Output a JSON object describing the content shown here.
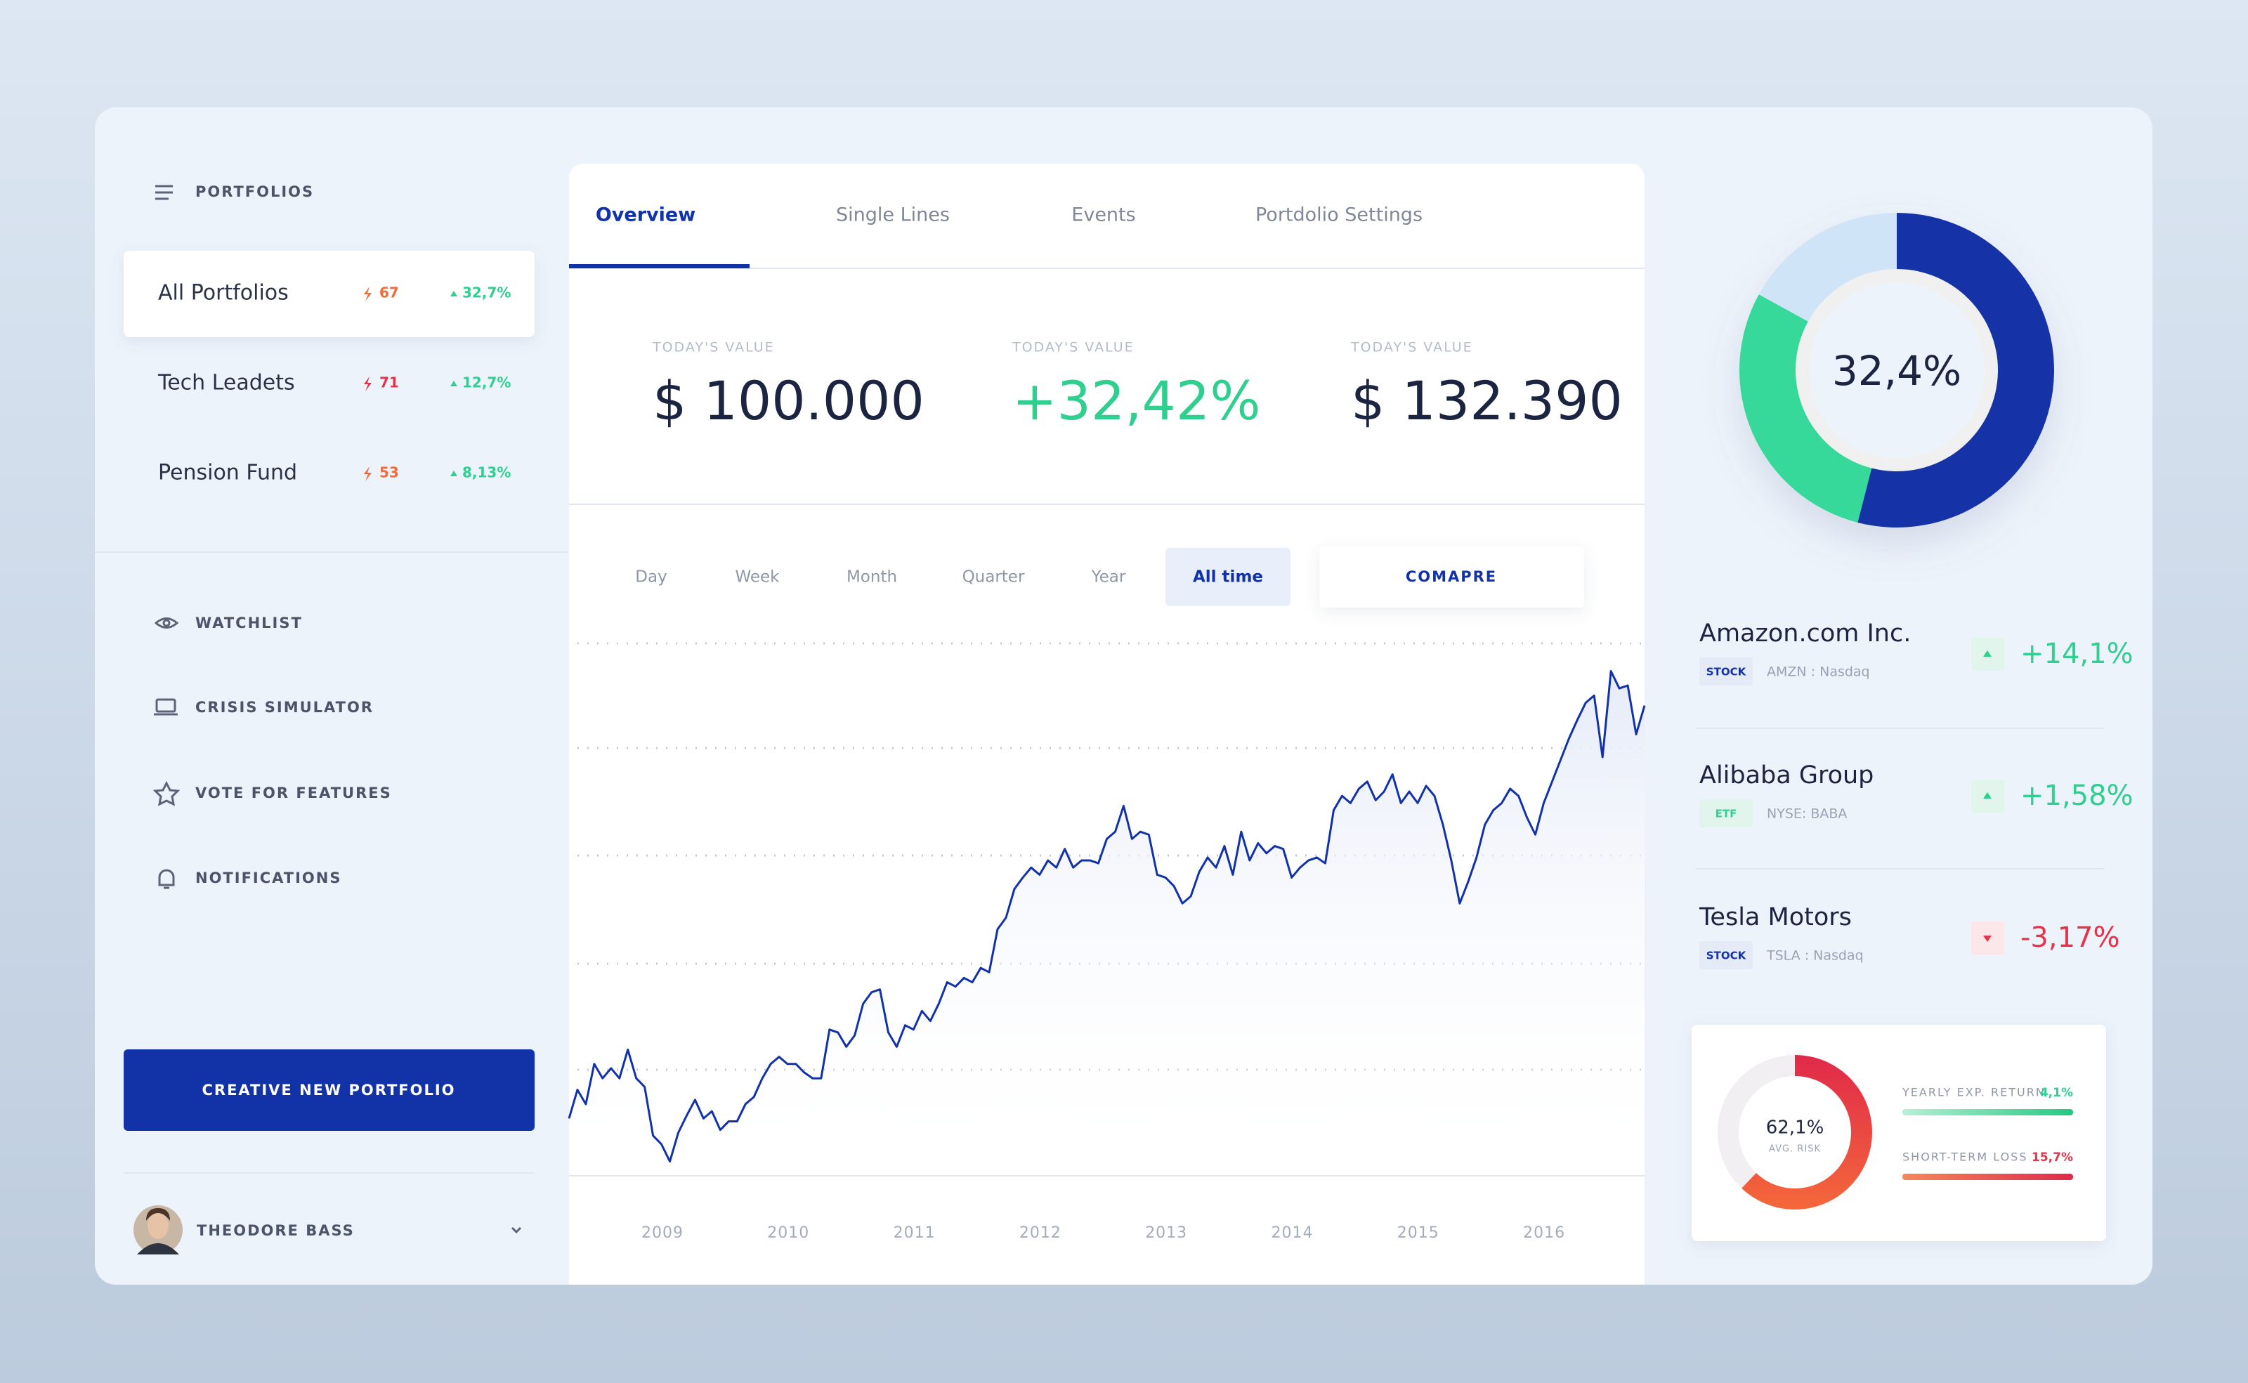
{
  "sidebar": {
    "title": "PORTFOLIOS",
    "portfolios": [
      {
        "name": "All Portfolios",
        "count": "67",
        "change": "32,7%"
      },
      {
        "name": "Tech Leadets",
        "count": "71",
        "change": "12,7%"
      },
      {
        "name": "Pension Fund",
        "count": "53",
        "change": "8,13%"
      }
    ],
    "menu": [
      "WATCHLIST",
      "CRISIS SIMULATOR",
      "VOTE FOR FEATURES",
      "NOTIFICATIONS"
    ],
    "button": "CREATIVE NEW PORTFOLIO",
    "user": "THEODORE BASS"
  },
  "tabs": [
    "Overview",
    "Single Lines",
    "Events",
    "Portdolio Settings"
  ],
  "stats": [
    {
      "label": "TODAY'S VALUE",
      "value": "$ 100.000",
      "color": "#1b2440"
    },
    {
      "label": "TODAY'S VALUE",
      "value": "+32,42%",
      "color": "#2ecf8f"
    },
    {
      "label": "TODAY'S VALUE",
      "value": "$ 132.390",
      "color": "#1b2440"
    }
  ],
  "ranges": [
    "Day",
    "Week",
    "Month",
    "Quarter",
    "Year",
    "All time"
  ],
  "compare": "COMAPRE",
  "chart_data": {
    "type": "line",
    "color": "#1233a8",
    "xtick_labels": [
      "2009",
      "2010",
      "2011",
      "2012",
      "2013",
      "2014",
      "2015",
      "2016"
    ],
    "values": [
      40,
      60,
      50,
      78,
      68,
      75,
      68,
      88,
      68,
      62,
      28,
      22,
      10,
      30,
      42,
      53,
      40,
      45,
      32,
      38,
      38,
      50,
      55,
      68,
      78,
      83,
      78,
      78,
      72,
      68,
      68,
      102,
      100,
      90,
      98,
      120,
      128,
      130,
      100,
      90,
      105,
      102,
      115,
      108,
      120,
      135,
      132,
      138,
      135,
      145,
      142,
      172,
      180,
      200,
      208,
      215,
      210,
      220,
      215,
      228,
      215,
      220,
      220,
      218,
      235,
      240,
      258,
      235,
      240,
      238,
      210,
      208,
      202,
      190,
      195,
      212,
      222,
      215,
      230,
      210,
      240,
      220,
      232,
      225,
      230,
      228,
      208,
      215,
      220,
      222,
      218,
      255,
      265,
      260,
      270,
      275,
      262,
      268,
      280,
      260,
      268,
      260,
      272,
      265,
      245,
      220,
      190,
      205,
      222,
      245,
      255,
      260,
      270,
      265,
      250,
      238,
      260,
      275,
      290,
      305,
      318,
      330,
      335,
      292,
      352,
      340,
      342,
      308,
      328
    ]
  },
  "donut": {
    "center_label": "32,4%",
    "segments": [
      {
        "value": 54,
        "color": "#1533a6"
      },
      {
        "value": 29,
        "color": "#36d99a"
      },
      {
        "value": 17,
        "color": "#cfe4f7"
      }
    ]
  },
  "stocks": [
    {
      "name": "Amazon.com Inc.",
      "type": "STOCK",
      "ticker": "AMZN : Nasdaq",
      "change": "+14,1%",
      "direction": "up",
      "color": "#1233a8"
    },
    {
      "name": "Alibaba Group",
      "type": "ETF",
      "ticker": "NYSE: BABA",
      "change": "+1,58%",
      "direction": "up",
      "color": "#2ecf8f"
    },
    {
      "name": "Tesla Motors",
      "type": "STOCK",
      "ticker": "TSLA : Nasdaq",
      "change": "-3,17%",
      "direction": "down",
      "color": "#1233a8"
    }
  ],
  "risk": {
    "value": 62.1,
    "value_label": "62,1%",
    "label": "AVG. RISK",
    "metrics": [
      {
        "label": "YEARLY EXP. RETURN",
        "value": "4,1%",
        "color": "#2ecf8f"
      },
      {
        "label": "SHORT-TERM LOSS",
        "value": "15,7%",
        "color": "#e5344a"
      }
    ]
  }
}
